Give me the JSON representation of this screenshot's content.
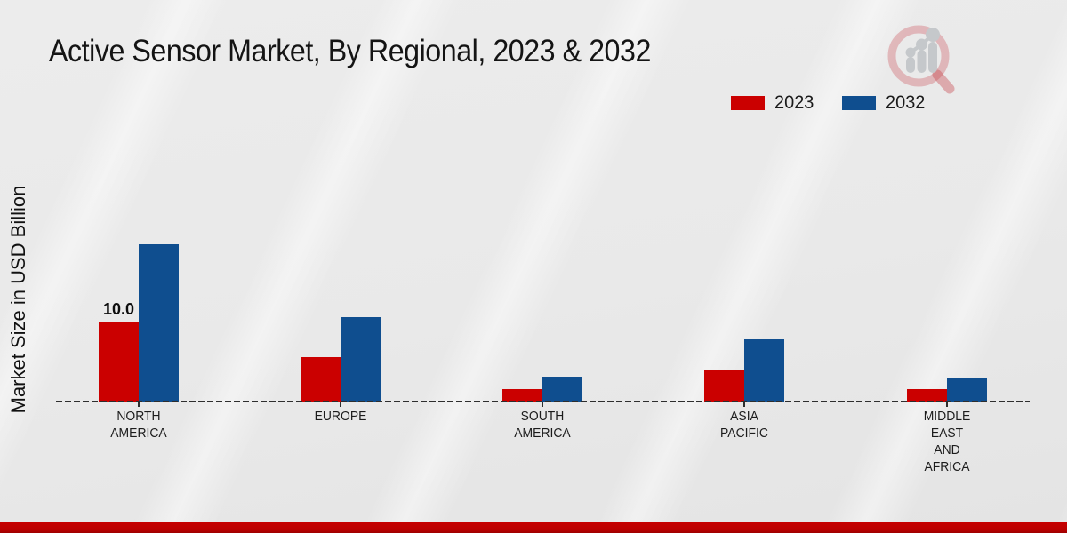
{
  "chart_data": {
    "type": "bar",
    "title": "Active Sensor Market, By Regional, 2023 & 2032",
    "ylabel": "Market Size in USD Billion",
    "xlabel": "",
    "categories": [
      "NORTH AMERICA",
      "EUROPE",
      "SOUTH AMERICA",
      "ASIA PACIFIC",
      "MIDDLE EAST AND AFRICA"
    ],
    "category_label_lines": [
      [
        "NORTH",
        "AMERICA"
      ],
      [
        "EUROPE"
      ],
      [
        "SOUTH",
        "AMERICA"
      ],
      [
        "ASIA",
        "PACIFIC"
      ],
      [
        "MIDDLE",
        "EAST",
        "AND",
        "AFRICA"
      ]
    ],
    "series": [
      {
        "name": "2023",
        "color": "#cb0000",
        "values": [
          10.0,
          5.6,
          1.5,
          4.0,
          1.5
        ]
      },
      {
        "name": "2032",
        "color": "#0f4e8f",
        "values": [
          19.7,
          10.6,
          3.1,
          7.8,
          3.0
        ]
      }
    ],
    "data_labels": [
      {
        "series_index": 0,
        "category_index": 0,
        "text": "10.0"
      }
    ],
    "ylim": [
      0,
      22
    ],
    "grid": false,
    "legend_position": "top-right",
    "baseline_style": "dashed"
  },
  "legend": {
    "items": [
      {
        "label": "2023",
        "color": "#cb0000"
      },
      {
        "label": "2032",
        "color": "#0f4e8f"
      }
    ]
  },
  "branding": {
    "logo": "market-research-future-magnifier-chart-logo"
  },
  "colors": {
    "bar_2023": "#cb0000",
    "bar_2032": "#0f4e8f",
    "accent_band": "#c00000",
    "background": "#e9e9e9",
    "text": "#1a1a1a"
  }
}
